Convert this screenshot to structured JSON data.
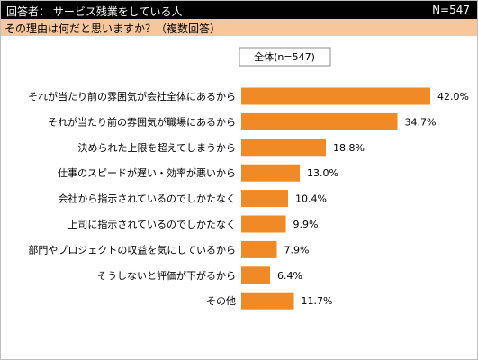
{
  "header": {
    "respondents_label": "回答者： サービス残業をしている人",
    "sample_size": "N=547",
    "question": "その理由は何だと思いますか？（複数回答）"
  },
  "colors": {
    "header_bg": "#000000",
    "question_bg": "#f7c79b",
    "bar": "#f08a26"
  },
  "chart_data": {
    "type": "bar",
    "orientation": "horizontal",
    "categories": [
      "それが当たり前の雰囲気が会社全体にあるから",
      "それが当たり前の雰囲気が職場にあるから",
      "決められた上限を超えてしまうから",
      "仕事のスピードが遅い・効率が悪いから",
      "会社から指示されているのでしかたなく",
      "上司に指示されているのでしかたなく",
      "部門やプロジェクトの収益を気にしているから",
      "そうしないと評価が下がるから",
      "その他"
    ],
    "series": [
      {
        "name": "全体(n=547)",
        "values": [
          42.0,
          34.7,
          18.8,
          13.0,
          10.4,
          9.9,
          7.9,
          6.4,
          11.7
        ]
      }
    ],
    "value_labels": [
      "42.0%",
      "34.7%",
      "18.8%",
      "13.0%",
      "10.4%",
      "9.9%",
      "7.9%",
      "6.4%",
      "11.7%"
    ],
    "legend_position": "top-center",
    "grid": false
  }
}
